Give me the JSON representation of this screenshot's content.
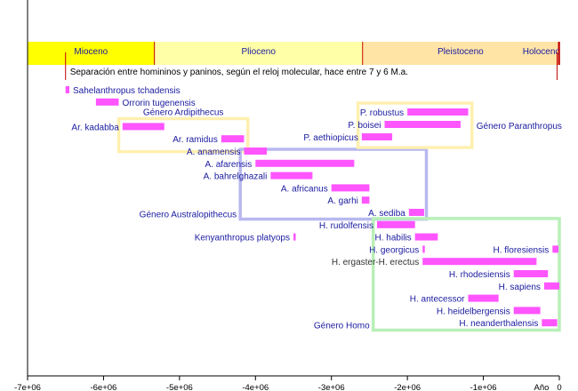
{
  "chart_data": {
    "type": "bar",
    "title": "",
    "xlabel": "Año",
    "ylabel": "",
    "xlim": [
      -7000000,
      0
    ],
    "x_ticks": [
      -7000000,
      -6000000,
      -5000000,
      -4000000,
      -3000000,
      -2000000,
      -1000000,
      0
    ],
    "x_tick_labels": [
      "-7e+06",
      "-6e+06",
      "-5e+06",
      "-4e+06",
      "-3e+06",
      "-2e+06",
      "-1e+06",
      "0"
    ],
    "grid": false,
    "epochs": [
      {
        "name": "Mioceno",
        "start": -7000000,
        "end": -5330000,
        "color": "#ffff00"
      },
      {
        "name": "Plioceno",
        "start": -5330000,
        "end": -2590000,
        "color": "#ffffa8"
      },
      {
        "name": "Pleistoceno",
        "start": -2590000,
        "end": -11700,
        "color": "#ffe4a6"
      },
      {
        "name": "Holoceno",
        "start": -11700,
        "end": 0,
        "color": "#ffe4a6"
      }
    ],
    "annotation": {
      "text": "Separación entre homininos y paninos, según el reloj molecular, hace entre 7 y 6 M.a.",
      "marks": [
        -6500000,
        -30000
      ]
    },
    "series_color": "#ff55ff",
    "species": [
      {
        "name": "Sahelanthropus tchadensis",
        "start": -6500000,
        "end": -6450000,
        "row": 0,
        "label_side": "right",
        "label_color": "#1a1aa0"
      },
      {
        "name": "Orrorin tugenensis",
        "start": -6100000,
        "end": -5800000,
        "row": 1,
        "label_side": "right",
        "label_color": "#1a1aa0"
      },
      {
        "name": "Ar. kadabba",
        "start": -5750000,
        "end": -5200000,
        "row": 3,
        "label_side": "left",
        "label_color": "#1a1aa0"
      },
      {
        "name": "Ar. ramidus",
        "start": -4450000,
        "end": -4150000,
        "row": 4,
        "label_side": "left",
        "label_color": "#1a1aa0"
      },
      {
        "name": "A. anamensis",
        "start": -4150000,
        "end": -3850000,
        "row": 5,
        "label_side": "left",
        "label_color": "#1a1aa0"
      },
      {
        "name": "A. afarensis",
        "start": -4000000,
        "end": -2700000,
        "row": 6,
        "label_side": "left",
        "label_color": "#1a1aa0"
      },
      {
        "name": "A. bahrelghazali",
        "start": -3800000,
        "end": -3250000,
        "row": 7,
        "label_side": "left",
        "label_color": "#1a1aa0"
      },
      {
        "name": "A. africanus",
        "start": -3000000,
        "end": -2500000,
        "row": 8,
        "label_side": "left",
        "label_color": "#1a1aa0"
      },
      {
        "name": "A. garhi",
        "start": -2600000,
        "end": -2500000,
        "row": 9,
        "label_side": "left",
        "label_color": "#1a1aa0"
      },
      {
        "name": "A. sediba",
        "start": -1980000,
        "end": -1780000,
        "row": 10,
        "label_side": "left",
        "label_color": "#1a1aa0"
      },
      {
        "name": "Kenyanthropus platyops",
        "start": -3500000,
        "end": -3480000,
        "row": 12,
        "label_side": "left",
        "label_color": "#1a1aa0"
      },
      {
        "name": "P. robustus",
        "start": -2000000,
        "end": -1200000,
        "row": 0.5,
        "label_side": "left",
        "label_color": "#1a1aa0",
        "top_offset": 122
      },
      {
        "name": "P. boisei",
        "start": -2300000,
        "end": -1300000,
        "row": 1.5,
        "label_side": "left",
        "label_color": "#1a1aa0",
        "top_offset": 136
      },
      {
        "name": "P. aethiopicus",
        "start": -2600000,
        "end": -2200000,
        "row": 2.5,
        "label_side": "left",
        "label_color": "#1a1aa0",
        "top_offset": 150
      },
      {
        "name": "H. rudolfensis",
        "start": -2400000,
        "end": -1900000,
        "row": 11,
        "label_side": "left",
        "label_color": "#1a1aa0"
      },
      {
        "name": "H. habilis",
        "start": -1900000,
        "end": -1600000,
        "row": 12,
        "label_side": "left",
        "label_color": "#1a1aa0"
      },
      {
        "name": "H. georgicus",
        "start": -1800000,
        "end": -1780000,
        "row": 13,
        "label_side": "left",
        "label_color": "#1a1aa0"
      },
      {
        "name": "H. floresiensis",
        "start": -90000,
        "end": -12000,
        "row": 13,
        "label_side": "left",
        "label_color": "#1a1aa0"
      },
      {
        "name": "H. ergaster-H. erectus",
        "start": -1800000,
        "end": -300000,
        "row": 14,
        "label_side": "left",
        "label_color": "#1a1aa0"
      },
      {
        "name": "H. rhodesiensis",
        "start": -600000,
        "end": -150000,
        "row": 15,
        "label_side": "left",
        "label_color": "#1a1aa0"
      },
      {
        "name": "H. sapiens",
        "start": -200000,
        "end": 0,
        "row": 16,
        "label_side": "left",
        "label_color": "#1a1aa0"
      },
      {
        "name": "H. antecessor",
        "start": -1200000,
        "end": -800000,
        "row": 17,
        "label_side": "left",
        "label_color": "#1a1aa0"
      },
      {
        "name": "H. heidelbergensis",
        "start": -600000,
        "end": -250000,
        "row": 18,
        "label_side": "left",
        "label_color": "#1a1aa0"
      },
      {
        "name": "H. neanderthalensis",
        "start": -230000,
        "end": -28000,
        "row": 19,
        "label_side": "left",
        "label_color": "#1a1aa0"
      }
    ],
    "groups": [
      {
        "name": "Género Ardipithecus",
        "start": -5800000,
        "end": -4100000,
        "color": "#fff0b0",
        "label_side": "top"
      },
      {
        "name": "Género Australopithecus",
        "start": -4200000,
        "end": -1750000,
        "color": "#b8b8f0",
        "label_side": "left"
      },
      {
        "name": "Género Paranthropus",
        "start": -2650000,
        "end": -1150000,
        "color": "#fff0b0",
        "label_side": "right"
      },
      {
        "name": "Género Homo",
        "start": -2450000,
        "end": 0,
        "color": "#b8f0b8",
        "label_side": "left"
      }
    ]
  }
}
